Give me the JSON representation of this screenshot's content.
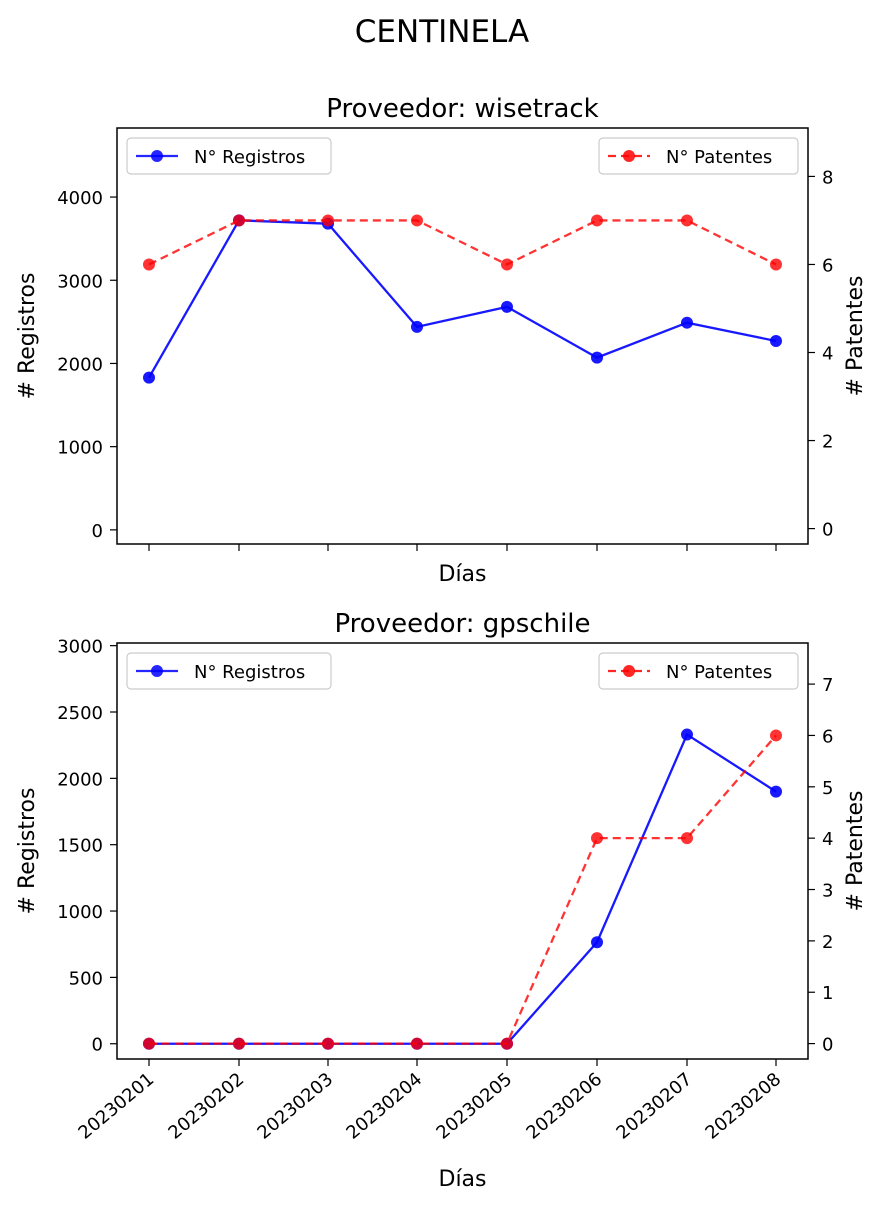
{
  "figure_title": "CENTINELA",
  "chart_data": [
    {
      "type": "line",
      "title": "Proveedor: wisetrack",
      "xlabel": "Días",
      "ylabel_left": "# Registros",
      "ylabel_right": "# Patentes",
      "categories": [
        "20230201",
        "20230202",
        "20230203",
        "20230204",
        "20230205",
        "20230206",
        "20230207",
        "20230208"
      ],
      "show_xtick_labels": false,
      "ylim_left": [
        -170,
        4830
      ],
      "yticks_left": [
        0,
        1000,
        2000,
        3000,
        4000
      ],
      "ylim_right": [
        -0.35,
        9.1
      ],
      "yticks_right": [
        0,
        2,
        4,
        6,
        8
      ],
      "series": [
        {
          "name": "N° Registros",
          "axis": "left",
          "color": "#0000ff",
          "style": "solid",
          "values": [
            1830,
            3720,
            3680,
            2440,
            2680,
            2070,
            2490,
            2270
          ]
        },
        {
          "name": "N° Patentes",
          "axis": "right",
          "color": "#ff0000",
          "style": "dashed",
          "values": [
            6,
            7,
            7,
            7,
            6,
            7,
            7,
            6
          ]
        }
      ],
      "legend_left": "upper left",
      "legend_right": "upper right"
    },
    {
      "type": "line",
      "title": "Proveedor: gpschile",
      "xlabel": "Días",
      "ylabel_left": "# Registros",
      "ylabel_right": "# Patentes",
      "categories": [
        "20230201",
        "20230202",
        "20230203",
        "20230204",
        "20230205",
        "20230206",
        "20230207",
        "20230208"
      ],
      "show_xtick_labels": true,
      "ylim_left": [
        -115,
        3020
      ],
      "yticks_left": [
        0,
        500,
        1000,
        1500,
        2000,
        2500,
        3000
      ],
      "ylim_right": [
        -0.3,
        7.8
      ],
      "yticks_right": [
        0,
        1,
        2,
        3,
        4,
        5,
        6,
        7
      ],
      "series": [
        {
          "name": "N° Registros",
          "axis": "left",
          "color": "#0000ff",
          "style": "solid",
          "values": [
            0,
            0,
            0,
            0,
            0,
            765,
            2330,
            1900
          ]
        },
        {
          "name": "N° Patentes",
          "axis": "right",
          "color": "#ff0000",
          "style": "dashed",
          "values": [
            0,
            0,
            0,
            0,
            0,
            4,
            4,
            6
          ]
        }
      ],
      "legend_left": "upper left",
      "legend_right": "upper right"
    }
  ]
}
